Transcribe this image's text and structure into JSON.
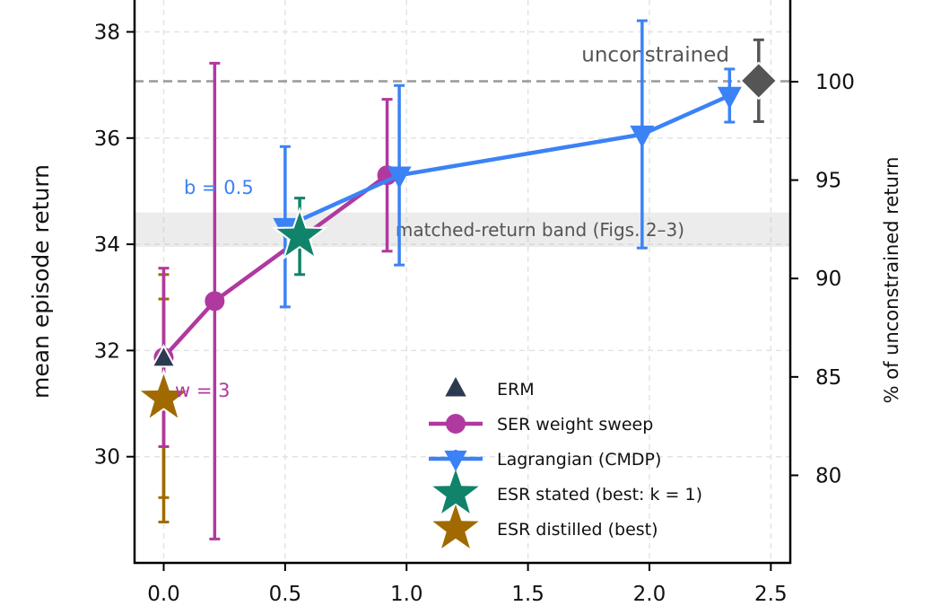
{
  "chart_data": {
    "type": "scatter",
    "ylabel": "mean episode return",
    "ylabel_right": "% of unconstrained return",
    "xlim": [
      -0.12,
      2.58
    ],
    "ylim": [
      28.0,
      38.6
    ],
    "ylim_right_pct": [
      75.55,
      104.15
    ],
    "x_ticks": [
      0.0,
      0.5,
      1.0,
      1.5,
      2.0,
      2.5
    ],
    "x_tick_labels": [
      "0.0",
      "0.5",
      "1.0",
      "1.5",
      "2.0",
      "2.5"
    ],
    "y_ticks": [
      30,
      32,
      34,
      36,
      38
    ],
    "y_tick_labels": [
      "30",
      "32",
      "34",
      "36",
      "38"
    ],
    "y_right_ticks": [
      80,
      85,
      90,
      95,
      100
    ],
    "y_right_tick_labels": [
      "80",
      "85",
      "90",
      "95",
      "100"
    ],
    "grid": true,
    "legend_position": "lower-right",
    "reference_line": {
      "label": "unconstrained",
      "y": 37.07
    },
    "band": {
      "label": "matched-return band (Figs. 2–3)",
      "y_low": 33.95,
      "y_high": 34.6
    },
    "annotations": [
      {
        "text": "b = 0.5",
        "series": "Lagrangian (CMDP)"
      },
      {
        "text": "w = 3",
        "series": "SER weight sweep"
      }
    ],
    "series": [
      {
        "name": "ERM",
        "color": "#2b3a50",
        "marker": "triangle-up",
        "points": [
          {
            "x": 0.0,
            "y": 31.85,
            "err": 0.0
          }
        ]
      },
      {
        "name": "SER weight sweep",
        "color": "#b0399f",
        "marker": "circle",
        "line": true,
        "points": [
          {
            "x": 0.0,
            "y": 31.87,
            "err": 1.68
          },
          {
            "x": 0.21,
            "y": 32.93,
            "err": 4.48
          },
          {
            "x": 0.92,
            "y": 35.3,
            "err": 1.43
          }
        ]
      },
      {
        "name": "Lagrangian (CMDP)",
        "color": "#3b82f6",
        "marker": "triangle-down",
        "line": true,
        "points": [
          {
            "x": 0.5,
            "y": 34.33,
            "err": 1.51
          },
          {
            "x": 0.97,
            "y": 35.3,
            "err": 1.69
          },
          {
            "x": 1.97,
            "y": 36.07,
            "err": 2.14
          },
          {
            "x": 2.33,
            "y": 36.8,
            "err": 0.5
          }
        ]
      },
      {
        "name": "ESR stated (best: k = 1)",
        "color": "#12836b",
        "marker": "star",
        "points": [
          {
            "x": 0.56,
            "y": 34.15,
            "err": 0.72
          }
        ]
      },
      {
        "name": "ESR distilled (best)",
        "color": "#a06a00",
        "marker": "star",
        "points": [
          {
            "x": 0.0,
            "y": 31.1,
            "err": 2.33
          },
          {
            "x": 0.0,
            "y": 31.1,
            "err": 1.87
          }
        ]
      },
      {
        "name": "unconstrained",
        "color": "#555555",
        "marker": "diamond",
        "in_legend": false,
        "points": [
          {
            "x": 2.45,
            "y": 37.08,
            "err": 0.77
          }
        ]
      }
    ]
  }
}
